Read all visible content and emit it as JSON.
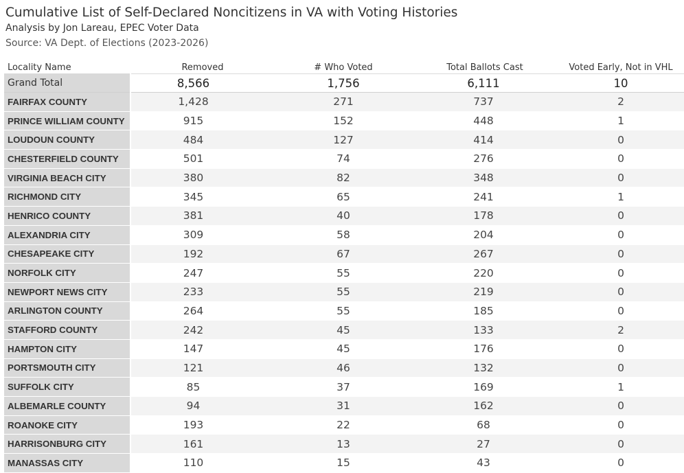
{
  "chart_data": {
    "type": "table",
    "title": "Cumulative List of Self-Declared Noncitizens in VA with Voting Histories",
    "subtitle": "Analysis by Jon Lareau, EPEC Voter Data",
    "source": "Source: VA Dept. of Elections (2023-2026)",
    "columns": [
      "Locality Name",
      "Removed",
      "# Who Voted",
      "Total Ballots Cast",
      "Voted Early, Not in VHL"
    ],
    "grand_total": {
      "label": "Grand Total",
      "values": [
        "8,566",
        "1,756",
        "6,111",
        "10"
      ]
    },
    "rows": [
      {
        "locality": "FAIRFAX COUNTY",
        "values": [
          "1,428",
          "271",
          "737",
          "2"
        ]
      },
      {
        "locality": "PRINCE WILLIAM COUNTY",
        "values": [
          "915",
          "152",
          "448",
          "1"
        ]
      },
      {
        "locality": "LOUDOUN COUNTY",
        "values": [
          "484",
          "127",
          "414",
          "0"
        ]
      },
      {
        "locality": "CHESTERFIELD COUNTY",
        "values": [
          "501",
          "74",
          "276",
          "0"
        ]
      },
      {
        "locality": "VIRGINIA BEACH CITY",
        "values": [
          "380",
          "82",
          "348",
          "0"
        ]
      },
      {
        "locality": "RICHMOND CITY",
        "values": [
          "345",
          "65",
          "241",
          "1"
        ]
      },
      {
        "locality": "HENRICO COUNTY",
        "values": [
          "381",
          "40",
          "178",
          "0"
        ]
      },
      {
        "locality": "ALEXANDRIA CITY",
        "values": [
          "309",
          "58",
          "204",
          "0"
        ]
      },
      {
        "locality": "CHESAPEAKE CITY",
        "values": [
          "192",
          "67",
          "267",
          "0"
        ]
      },
      {
        "locality": "NORFOLK CITY",
        "values": [
          "247",
          "55",
          "220",
          "0"
        ]
      },
      {
        "locality": "NEWPORT NEWS CITY",
        "values": [
          "233",
          "55",
          "219",
          "0"
        ]
      },
      {
        "locality": "ARLINGTON COUNTY",
        "values": [
          "264",
          "55",
          "185",
          "0"
        ]
      },
      {
        "locality": "STAFFORD COUNTY",
        "values": [
          "242",
          "45",
          "133",
          "2"
        ]
      },
      {
        "locality": "HAMPTON CITY",
        "values": [
          "147",
          "45",
          "176",
          "0"
        ]
      },
      {
        "locality": "PORTSMOUTH CITY",
        "values": [
          "121",
          "46",
          "132",
          "0"
        ]
      },
      {
        "locality": "SUFFOLK CITY",
        "values": [
          "85",
          "37",
          "169",
          "1"
        ]
      },
      {
        "locality": "ALBEMARLE COUNTY",
        "values": [
          "94",
          "31",
          "162",
          "0"
        ]
      },
      {
        "locality": "ROANOKE CITY",
        "values": [
          "193",
          "22",
          "68",
          "0"
        ]
      },
      {
        "locality": "HARRISONBURG CITY",
        "values": [
          "161",
          "13",
          "27",
          "0"
        ]
      },
      {
        "locality": "MANASSAS CITY",
        "values": [
          "110",
          "15",
          "43",
          "0"
        ]
      }
    ]
  }
}
